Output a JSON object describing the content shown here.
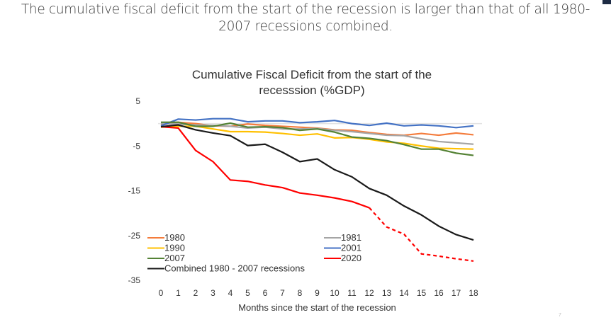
{
  "slide": {
    "title": "The cumulative fiscal deficit from the start of the recession is larger than that of all 1980-2007 recessions combined.",
    "title_line1": "The cumulative fiscal deficit from the start of the recession is larger than that of all 1980-",
    "title_line2": "2007 recessions combined.",
    "page_number": "7"
  },
  "chart_data": {
    "type": "line",
    "title": "Cumulative Fiscal Deficit from the start of the recesssion (%GDP)",
    "title_line1": "Cumulative Fiscal Deficit from the start of the",
    "title_line2": "recesssion (%GDP)",
    "xlabel": "Months since the start of the recession",
    "ylabel": "",
    "x": [
      0,
      1,
      2,
      3,
      4,
      5,
      6,
      7,
      8,
      9,
      10,
      11,
      12,
      13,
      14,
      15,
      16,
      17,
      18
    ],
    "xlim": [
      0,
      18
    ],
    "ylim": [
      -35,
      5
    ],
    "yticks": [
      5,
      -5,
      -15,
      -25,
      -35
    ],
    "grid": false,
    "zero_line": true,
    "legend_position": "bottom-inside",
    "series": [
      {
        "name": "1980",
        "color": "#f47c3c",
        "style": "solid",
        "values": [
          -0.3,
          0.3,
          0.0,
          -0.5,
          -0.6,
          -0.1,
          -0.4,
          -0.6,
          -0.8,
          -1.0,
          -1.4,
          -1.5,
          -2.0,
          -2.4,
          -2.6,
          -2.2,
          -2.6,
          -2.1,
          -2.5
        ]
      },
      {
        "name": "1981",
        "color": "#a5a5a5",
        "style": "solid",
        "values": [
          0.0,
          -0.1,
          -0.3,
          -0.4,
          -0.6,
          -1.0,
          -0.8,
          -1.2,
          -1.2,
          -1.1,
          -1.5,
          -1.8,
          -2.2,
          -2.6,
          -2.7,
          -3.4,
          -4.0,
          -4.3,
          -4.6
        ]
      },
      {
        "name": "1990",
        "color": "#ffc000",
        "style": "solid",
        "values": [
          -0.8,
          -0.6,
          -0.6,
          -1.2,
          -1.8,
          -1.8,
          -1.9,
          -2.2,
          -2.6,
          -2.3,
          -3.2,
          -3.1,
          -3.5,
          -4.1,
          -4.4,
          -5.0,
          -5.5,
          -5.6,
          -5.7
        ]
      },
      {
        "name": "2001",
        "color": "#4472c4",
        "style": "solid",
        "values": [
          -0.5,
          1.0,
          0.8,
          1.1,
          1.1,
          0.4,
          0.6,
          0.6,
          0.2,
          0.4,
          0.7,
          0.0,
          -0.4,
          0.1,
          -0.5,
          -0.3,
          -0.5,
          -0.9,
          -0.5
        ]
      },
      {
        "name": "2007",
        "color": "#548235",
        "style": "solid",
        "values": [
          0.3,
          0.3,
          -0.6,
          -0.6,
          0.1,
          -0.8,
          -0.7,
          -0.9,
          -1.5,
          -1.2,
          -1.9,
          -3.0,
          -3.3,
          -3.8,
          -4.7,
          -5.7,
          -5.7,
          -6.6,
          -7.1
        ]
      },
      {
        "name": "2020",
        "color": "#ff0000",
        "style": "solid-then-dashed",
        "dashed_from_x": 12,
        "values": [
          -0.7,
          -1.0,
          -6.0,
          -8.5,
          -12.6,
          -12.9,
          -13.7,
          -14.3,
          -15.5,
          -16.0,
          -16.6,
          -17.4,
          -18.8,
          -23.1,
          -24.7,
          -29.1,
          -29.6,
          -30.2,
          -30.7
        ]
      },
      {
        "name": "Combined 1980 - 2007 recessions",
        "color": "#1a1a1a",
        "style": "solid",
        "values": [
          -0.7,
          -0.3,
          -1.4,
          -2.1,
          -2.7,
          -4.9,
          -4.6,
          -6.4,
          -8.5,
          -7.9,
          -10.3,
          -11.9,
          -14.5,
          -16.0,
          -18.4,
          -20.4,
          -22.9,
          -24.8,
          -26.0
        ]
      }
    ],
    "legend": {
      "left_column": [
        "1980",
        "1990",
        "2007",
        "Combined 1980 - 2007 recessions"
      ],
      "right_column": [
        "1981",
        "2001",
        "2020"
      ]
    }
  }
}
